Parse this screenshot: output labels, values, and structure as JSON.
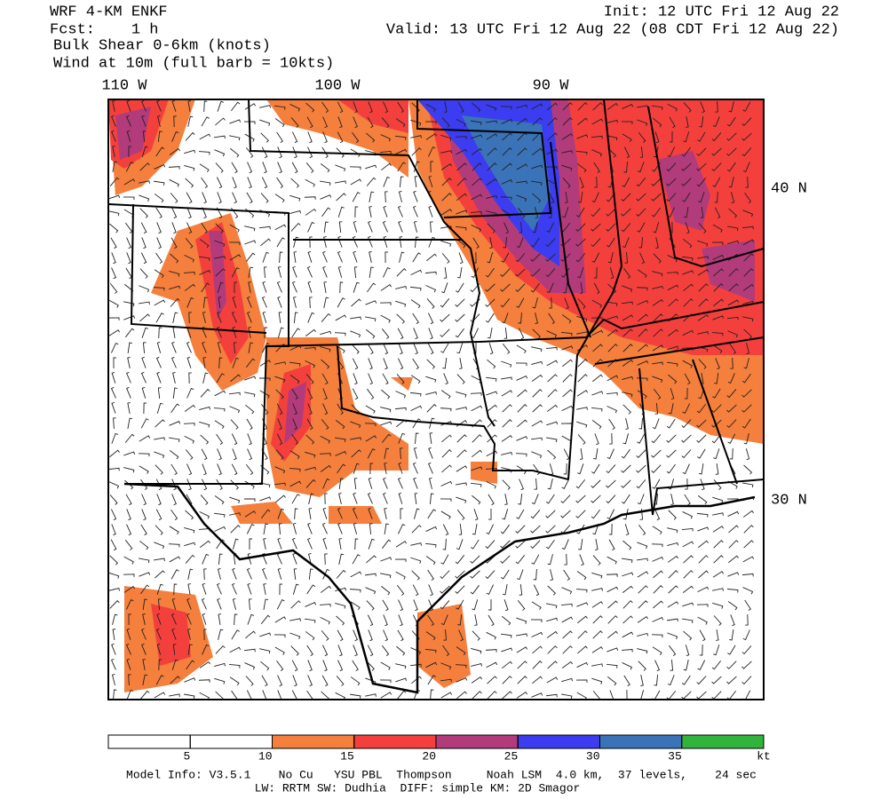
{
  "header": {
    "model": "WRF 4-KM ENKF",
    "forecast": "Fcst:    1 h",
    "field": "Bulk Shear 0-6km (knots)",
    "wind": "Wind at 10m (full barb = 10kts)",
    "init": "Init: 12 UTC Fri 12 Aug 22",
    "valid": "Valid: 13 UTC Fri 12 Aug 22 (08 CDT Fri 12 Aug 22)"
  },
  "map": {
    "longitudes": [
      "110 W",
      "100 W",
      "90 W"
    ],
    "latitudes": [
      "40 N",
      "30 N"
    ]
  },
  "colorbar": {
    "levels": [
      5,
      10,
      15,
      20,
      25,
      30,
      35
    ],
    "unit": "kt",
    "colors": [
      "#ffffff",
      "#ffffff",
      "#f57f3c",
      "#f4403d",
      "#b23b7b",
      "#3c3cf0",
      "#3a73b8",
      "#32b43c"
    ]
  },
  "footer": {
    "line1": "Model Info: V3.5.1    No Cu   YSU PBL  Thompson     Noah LSM  4.0 km,  37 levels,    24 sec",
    "line2": "LW: RRTM SW: Dudhia  DIFF: simple KM: 2D Smagor"
  }
}
